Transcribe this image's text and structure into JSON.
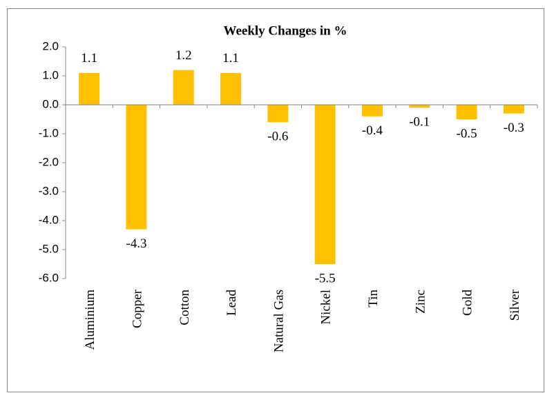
{
  "chart_data": {
    "type": "bar",
    "title": "Weekly Changes in %",
    "categories": [
      "Aluminium",
      "Copper",
      "Cotton",
      "Lead",
      "Natural Gas",
      "Nickel",
      "Tin",
      "Zinc",
      "Gold",
      "Silver"
    ],
    "values": [
      1.1,
      -4.3,
      1.2,
      1.1,
      -0.6,
      -5.5,
      -0.4,
      -0.1,
      -0.5,
      -0.3
    ],
    "color": "#ffc000",
    "ylim": [
      -6,
      2
    ],
    "yticks": [
      {
        "value": -6,
        "label": "-6.0"
      },
      {
        "value": -5,
        "label": "-5.0"
      },
      {
        "value": -4,
        "label": "-4.0"
      },
      {
        "value": -3,
        "label": "-3.0"
      },
      {
        "value": -2,
        "label": "-2.0"
      },
      {
        "value": -1,
        "label": "-1.0"
      },
      {
        "value": 0,
        "label": "0.0"
      },
      {
        "value": 1,
        "label": "1.0"
      },
      {
        "value": 2,
        "label": "2.0"
      }
    ],
    "grid": false
  }
}
